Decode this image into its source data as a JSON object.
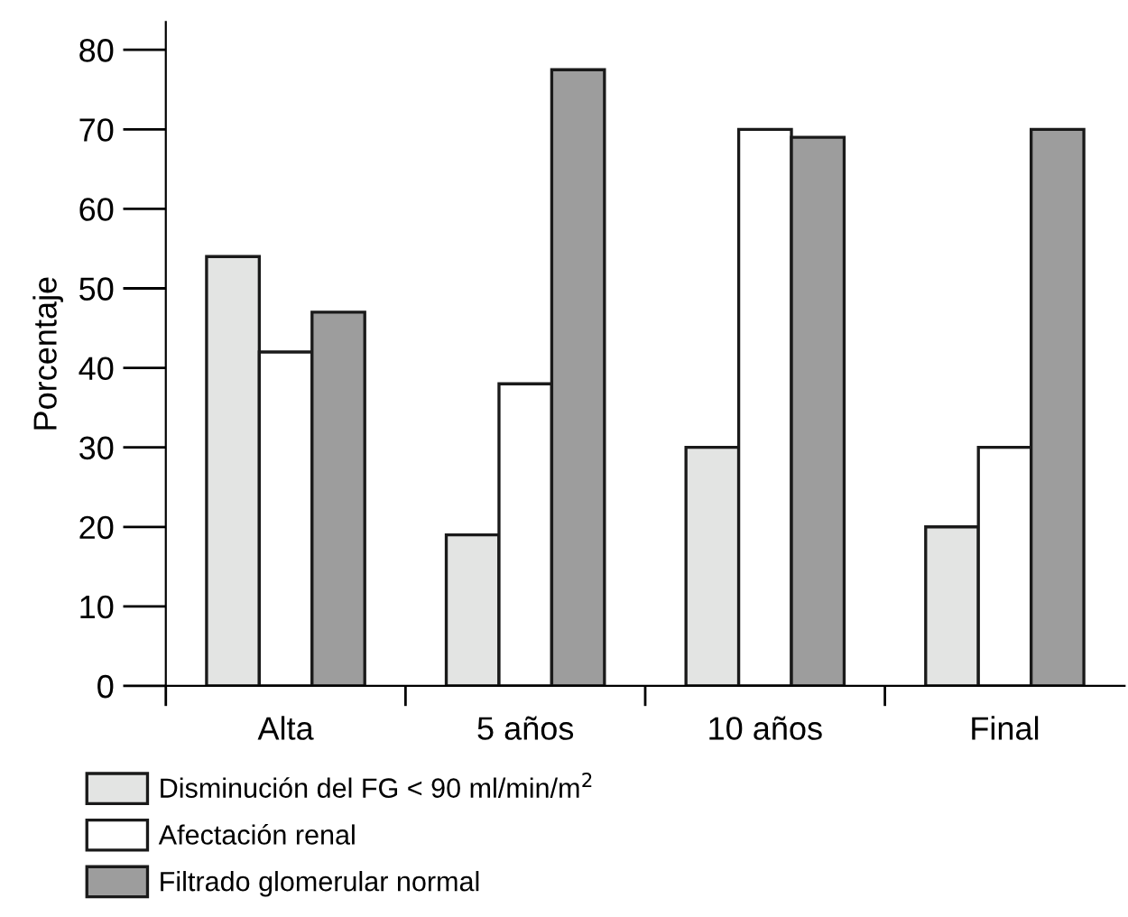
{
  "chart_data": {
    "type": "bar",
    "ylabel": "Porcentaje",
    "categories": [
      "Alta",
      "5 años",
      "10 años",
      "Final"
    ],
    "series": [
      {
        "name": "Disminución del FG < 90 ml/min/m$^{2}$",
        "color": "#e3e4e3",
        "values": [
          54,
          19,
          30,
          20
        ]
      },
      {
        "name": "Afectación renal",
        "color": "#ffffff",
        "values": [
          42,
          38,
          70,
          30
        ]
      },
      {
        "name": "Filtrado glomerular normal",
        "color": "#9d9d9d",
        "values": [
          47,
          77.5,
          69,
          70
        ]
      }
    ],
    "ylim": [
      0,
      83.5
    ],
    "yticks": [
      0,
      10,
      20,
      30,
      40,
      50,
      60,
      70,
      80
    ],
    "grid": false,
    "legend": "bottom"
  }
}
